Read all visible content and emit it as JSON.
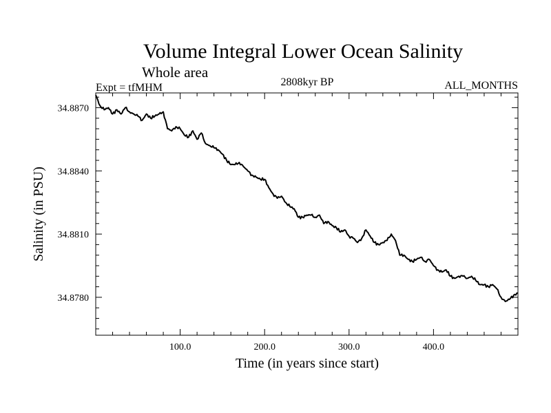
{
  "chart_data": {
    "type": "line",
    "title": "Volume Integral Lower Ocean Salinity",
    "subtitle": "Whole area",
    "left_label": "Expt = tfMHM",
    "center_label": "2808kyr BP",
    "right_label": "ALL_MONTHS",
    "xlabel": "Time (in years since start)",
    "ylabel": "Salinity (in PSU)",
    "xlim": [
      0,
      500
    ],
    "ylim": [
      34.8762,
      34.8877
    ],
    "x_ticks": [
      100,
      200,
      300,
      400
    ],
    "x_tick_labels": [
      "100.0",
      "200.0",
      "300.0",
      "400.0"
    ],
    "y_ticks": [
      34.878,
      34.881,
      34.884,
      34.887
    ],
    "y_tick_labels": [
      "34.8780",
      "34.8810",
      "34.8840",
      "34.8870"
    ],
    "series": [
      {
        "name": "Salinity",
        "color": "#000000",
        "x": [
          0,
          5,
          10,
          15,
          20,
          25,
          30,
          35,
          40,
          45,
          50,
          55,
          60,
          65,
          70,
          75,
          80,
          85,
          90,
          95,
          100,
          105,
          110,
          115,
          120,
          125,
          130,
          135,
          140,
          145,
          150,
          155,
          160,
          165,
          170,
          175,
          180,
          185,
          190,
          195,
          200,
          205,
          210,
          215,
          220,
          225,
          230,
          235,
          240,
          245,
          250,
          255,
          260,
          265,
          270,
          275,
          280,
          285,
          290,
          295,
          300,
          305,
          310,
          315,
          320,
          325,
          330,
          335,
          340,
          345,
          350,
          355,
          360,
          365,
          370,
          375,
          380,
          385,
          390,
          395,
          400,
          405,
          410,
          415,
          420,
          425,
          430,
          435,
          440,
          445,
          450,
          455,
          460,
          465,
          470,
          475,
          480,
          485,
          490,
          495,
          500
        ],
        "values": [
          34.8876,
          34.8871,
          34.8869,
          34.887,
          34.8867,
          34.8869,
          34.8867,
          34.887,
          34.8868,
          34.8867,
          34.8866,
          34.8864,
          34.8867,
          34.8865,
          34.8866,
          34.8867,
          34.8868,
          34.886,
          34.8859,
          34.8861,
          34.886,
          34.8857,
          34.8856,
          34.8859,
          34.8855,
          34.8858,
          34.8853,
          34.8852,
          34.8851,
          34.885,
          34.8848,
          34.8845,
          34.8843,
          34.8843,
          34.8844,
          34.8842,
          34.884,
          34.8838,
          34.8837,
          34.8836,
          34.8836,
          34.8832,
          34.8829,
          34.8827,
          34.8828,
          34.8825,
          34.8823,
          34.8822,
          34.8818,
          34.8818,
          34.8819,
          34.8819,
          34.8818,
          34.8819,
          34.8815,
          34.8816,
          34.8814,
          34.8813,
          34.8811,
          34.8812,
          34.8809,
          34.8808,
          34.8806,
          34.8808,
          34.8812,
          34.8809,
          34.8806,
          34.8805,
          34.8806,
          34.8807,
          34.881,
          34.8807,
          34.88,
          34.88,
          34.8798,
          34.8797,
          34.8798,
          34.8799,
          34.8797,
          34.8798,
          34.8795,
          34.8793,
          34.8792,
          34.8793,
          34.879,
          34.8789,
          34.879,
          34.879,
          34.8789,
          34.879,
          34.8788,
          34.8786,
          34.8786,
          34.8785,
          34.8786,
          34.8784,
          34.878,
          34.8778,
          34.8779,
          34.8781,
          34.8782
        ]
      }
    ]
  }
}
